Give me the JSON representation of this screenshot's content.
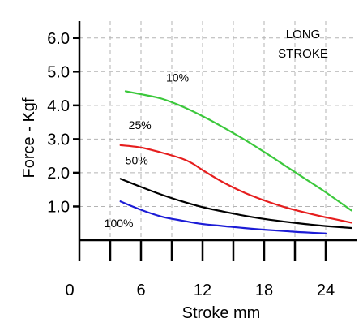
{
  "chart_data": {
    "type": "line",
    "title": "",
    "xlabel": "Stroke mm",
    "ylabel": "Force - Kgf",
    "xlim": [
      0,
      27
    ],
    "ylim": [
      0,
      6.5
    ],
    "x_ticks": [
      0,
      6,
      12,
      18,
      24
    ],
    "x_tick_labels": [
      "0",
      "6",
      "12",
      "18",
      "24"
    ],
    "x_minor_ticks": [
      3,
      9,
      15,
      21
    ],
    "y_ticks": [
      1.0,
      2.0,
      3.0,
      4.0,
      5.0,
      6.0
    ],
    "y_tick_labels": [
      "1.0",
      "2.0",
      "3.0",
      "4.0",
      "5.0",
      "6.0"
    ],
    "grid": true,
    "annotation_lines": [
      "LONG",
      "STROKE"
    ],
    "series": [
      {
        "name": "10%",
        "color": "#3cc83c",
        "x": [
          4.5,
          6,
          8,
          10,
          12,
          14,
          16,
          18,
          20,
          22,
          24,
          26.5
        ],
        "y": [
          4.42,
          4.33,
          4.2,
          3.97,
          3.68,
          3.35,
          3.0,
          2.62,
          2.22,
          1.82,
          1.42,
          0.88
        ]
      },
      {
        "name": "25%",
        "color": "#e61e1e",
        "x": [
          4,
          6,
          8,
          10,
          11,
          12,
          14,
          16,
          18,
          20,
          22,
          24,
          26.5
        ],
        "y": [
          2.82,
          2.75,
          2.6,
          2.42,
          2.28,
          2.08,
          1.72,
          1.42,
          1.18,
          0.98,
          0.82,
          0.68,
          0.52
        ]
      },
      {
        "name": "50%",
        "color": "#000000",
        "x": [
          4,
          6,
          8,
          10,
          12,
          14,
          16,
          18,
          20,
          22,
          24,
          26.5
        ],
        "y": [
          1.82,
          1.58,
          1.35,
          1.15,
          0.98,
          0.85,
          0.73,
          0.63,
          0.55,
          0.48,
          0.42,
          0.36
        ]
      },
      {
        "name": "100%",
        "color": "#1c1cd6",
        "x": [
          4,
          6,
          8,
          10,
          12,
          14,
          16,
          18,
          20,
          22,
          24
        ],
        "y": [
          1.15,
          0.9,
          0.7,
          0.58,
          0.48,
          0.42,
          0.36,
          0.31,
          0.27,
          0.23,
          0.2
        ]
      }
    ]
  }
}
